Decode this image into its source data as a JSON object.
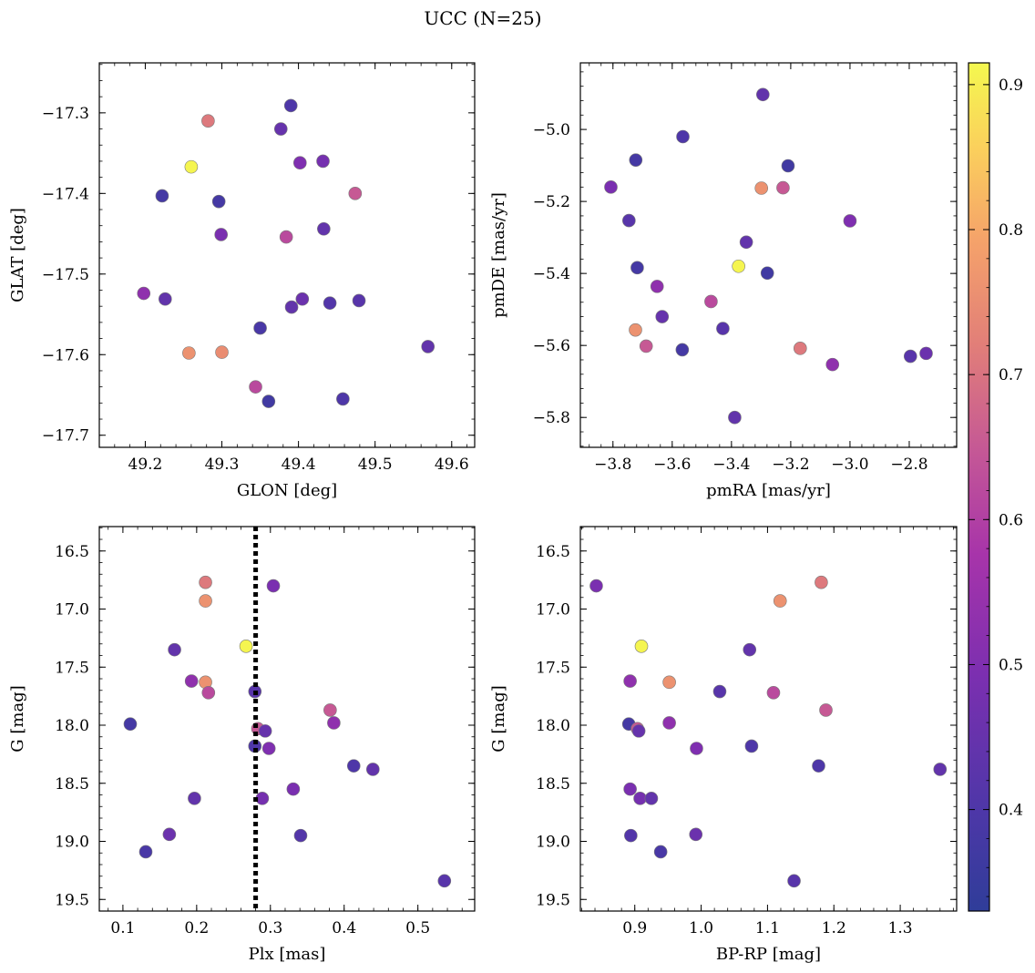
{
  "figure": {
    "title": "UCC (N=25)"
  },
  "colorbar": {
    "range": [
      0.33,
      0.915
    ],
    "ticks": [
      0.4,
      0.5,
      0.6,
      0.7,
      0.8,
      0.9
    ],
    "tick_labels": [
      "0.4",
      "0.5",
      "0.6",
      "0.7",
      "0.8",
      "0.9"
    ],
    "colormap": "plasma"
  },
  "chart_data": [
    {
      "id": "glon_glat",
      "type": "scatter",
      "xlabel": "GLON [deg]",
      "ylabel": "GLAT [deg]",
      "xlim": [
        49.14,
        49.63
      ],
      "ylim": [
        -17.715,
        -17.238
      ],
      "y_inverted": false,
      "xticks": [
        49.2,
        49.3,
        49.4,
        49.5,
        49.6
      ],
      "xtick_labels": [
        "49.2",
        "49.3",
        "49.4",
        "49.5",
        "49.6"
      ],
      "yticks": [
        -17.3,
        -17.4,
        -17.5,
        -17.6,
        -17.7
      ],
      "ytick_labels": [
        "−17.3",
        "−17.4",
        "−17.5",
        "−17.6",
        "−17.7"
      ],
      "points": [
        {
          "x": 49.39,
          "y": -17.291,
          "c": 0.4
        },
        {
          "x": 49.282,
          "y": -17.31,
          "c": 0.71
        },
        {
          "x": 49.377,
          "y": -17.32,
          "c": 0.45
        },
        {
          "x": 49.26,
          "y": -17.367,
          "c": 0.91
        },
        {
          "x": 49.402,
          "y": -17.362,
          "c": 0.5
        },
        {
          "x": 49.432,
          "y": -17.36,
          "c": 0.48
        },
        {
          "x": 49.222,
          "y": -17.403,
          "c": 0.38
        },
        {
          "x": 49.296,
          "y": -17.41,
          "c": 0.38
        },
        {
          "x": 49.474,
          "y": -17.4,
          "c": 0.65
        },
        {
          "x": 49.299,
          "y": -17.451,
          "c": 0.49
        },
        {
          "x": 49.384,
          "y": -17.454,
          "c": 0.62
        },
        {
          "x": 49.433,
          "y": -17.444,
          "c": 0.44
        },
        {
          "x": 49.198,
          "y": -17.524,
          "c": 0.53
        },
        {
          "x": 49.226,
          "y": -17.531,
          "c": 0.44
        },
        {
          "x": 49.405,
          "y": -17.531,
          "c": 0.46
        },
        {
          "x": 49.391,
          "y": -17.541,
          "c": 0.44
        },
        {
          "x": 49.441,
          "y": -17.536,
          "c": 0.41
        },
        {
          "x": 49.479,
          "y": -17.533,
          "c": 0.42
        },
        {
          "x": 49.35,
          "y": -17.567,
          "c": 0.39
        },
        {
          "x": 49.569,
          "y": -17.59,
          "c": 0.44
        },
        {
          "x": 49.257,
          "y": -17.598,
          "c": 0.76
        },
        {
          "x": 49.3,
          "y": -17.597,
          "c": 0.75
        },
        {
          "x": 49.344,
          "y": -17.64,
          "c": 0.62
        },
        {
          "x": 49.361,
          "y": -17.658,
          "c": 0.37
        },
        {
          "x": 49.458,
          "y": -17.655,
          "c": 0.4
        }
      ]
    },
    {
      "id": "pmra_pmde",
      "type": "scatter",
      "xlabel": "pmRA [mas/yr]",
      "ylabel": "pmDE [mas/yr]",
      "xlim": [
        -3.91,
        -2.64
      ],
      "ylim": [
        -5.883,
        -4.815
      ],
      "y_inverted": false,
      "xticks": [
        -3.8,
        -3.6,
        -3.4,
        -3.2,
        -3.0,
        -2.8
      ],
      "xtick_labels": [
        "−3.8",
        "−3.6",
        "−3.4",
        "−3.2",
        "−3.0",
        "−2.8"
      ],
      "yticks": [
        -5.0,
        -5.2,
        -5.4,
        -5.6,
        -5.8
      ],
      "ytick_labels": [
        "−5.0",
        "−5.2",
        "−5.4",
        "−5.6",
        "−5.8"
      ],
      "points": [
        {
          "x": -3.294,
          "y": -4.903,
          "c": 0.44
        },
        {
          "x": -3.564,
          "y": -5.02,
          "c": 0.4
        },
        {
          "x": -3.723,
          "y": -5.085,
          "c": 0.38
        },
        {
          "x": -3.209,
          "y": -5.101,
          "c": 0.37
        },
        {
          "x": -3.807,
          "y": -5.16,
          "c": 0.49
        },
        {
          "x": -3.299,
          "y": -5.163,
          "c": 0.76
        },
        {
          "x": -3.226,
          "y": -5.162,
          "c": 0.65
        },
        {
          "x": -3.746,
          "y": -5.253,
          "c": 0.42
        },
        {
          "x": -3.0,
          "y": -5.254,
          "c": 0.5
        },
        {
          "x": -3.35,
          "y": -5.313,
          "c": 0.44
        },
        {
          "x": -3.376,
          "y": -5.38,
          "c": 0.91
        },
        {
          "x": -3.718,
          "y": -5.384,
          "c": 0.38
        },
        {
          "x": -3.279,
          "y": -5.399,
          "c": 0.37
        },
        {
          "x": -3.651,
          "y": -5.436,
          "c": 0.53
        },
        {
          "x": -3.469,
          "y": -5.478,
          "c": 0.62
        },
        {
          "x": -3.634,
          "y": -5.52,
          "c": 0.45
        },
        {
          "x": -3.429,
          "y": -5.553,
          "c": 0.42
        },
        {
          "x": -3.724,
          "y": -5.557,
          "c": 0.76
        },
        {
          "x": -3.688,
          "y": -5.602,
          "c": 0.65
        },
        {
          "x": -3.566,
          "y": -5.612,
          "c": 0.38
        },
        {
          "x": -3.168,
          "y": -5.608,
          "c": 0.71
        },
        {
          "x": -2.796,
          "y": -5.63,
          "c": 0.42
        },
        {
          "x": -2.743,
          "y": -5.622,
          "c": 0.46
        },
        {
          "x": -3.059,
          "y": -5.653,
          "c": 0.53
        },
        {
          "x": -3.389,
          "y": -5.8,
          "c": 0.44
        }
      ]
    },
    {
      "id": "plx_g",
      "type": "scatter",
      "xlabel": "Plx [mas]",
      "ylabel": "G [mag]",
      "xlim": [
        0.068,
        0.577
      ],
      "ylim": [
        16.29,
        19.6
      ],
      "y_inverted": true,
      "xticks": [
        0.1,
        0.2,
        0.3,
        0.4,
        0.5
      ],
      "xtick_labels": [
        "0.1",
        "0.2",
        "0.3",
        "0.4",
        "0.5"
      ],
      "yticks": [
        16.5,
        17.0,
        17.5,
        18.0,
        18.5,
        19.0,
        19.5
      ],
      "ytick_labels": [
        "16.5",
        "17.0",
        "17.5",
        "18.0",
        "18.5",
        "19.0",
        "19.5"
      ],
      "vline": {
        "x": 0.28,
        "style": "dotted"
      },
      "points": [
        {
          "x": 0.212,
          "y": 16.77,
          "c": 0.71
        },
        {
          "x": 0.304,
          "y": 16.8,
          "c": 0.49
        },
        {
          "x": 0.212,
          "y": 16.93,
          "c": 0.76
        },
        {
          "x": 0.267,
          "y": 17.32,
          "c": 0.91
        },
        {
          "x": 0.17,
          "y": 17.35,
          "c": 0.44
        },
        {
          "x": 0.193,
          "y": 17.62,
          "c": 0.53
        },
        {
          "x": 0.212,
          "y": 17.63,
          "c": 0.76
        },
        {
          "x": 0.216,
          "y": 17.72,
          "c": 0.62
        },
        {
          "x": 0.279,
          "y": 17.71,
          "c": 0.42
        },
        {
          "x": 0.381,
          "y": 17.87,
          "c": 0.65
        },
        {
          "x": 0.11,
          "y": 17.99,
          "c": 0.38
        },
        {
          "x": 0.386,
          "y": 17.98,
          "c": 0.53
        },
        {
          "x": 0.283,
          "y": 18.03,
          "c": 0.65
        },
        {
          "x": 0.293,
          "y": 18.05,
          "c": 0.45
        },
        {
          "x": 0.279,
          "y": 18.18,
          "c": 0.4
        },
        {
          "x": 0.298,
          "y": 18.2,
          "c": 0.5
        },
        {
          "x": 0.413,
          "y": 18.35,
          "c": 0.4
        },
        {
          "x": 0.439,
          "y": 18.38,
          "c": 0.44
        },
        {
          "x": 0.331,
          "y": 18.55,
          "c": 0.49
        },
        {
          "x": 0.289,
          "y": 18.63,
          "c": 0.48
        },
        {
          "x": 0.197,
          "y": 18.63,
          "c": 0.44
        },
        {
          "x": 0.163,
          "y": 18.94,
          "c": 0.46
        },
        {
          "x": 0.341,
          "y": 18.95,
          "c": 0.41
        },
        {
          "x": 0.131,
          "y": 19.09,
          "c": 0.39
        },
        {
          "x": 0.536,
          "y": 19.34,
          "c": 0.42
        }
      ]
    },
    {
      "id": "bprp_g",
      "type": "scatter",
      "xlabel": "BP-RP [mag]",
      "ylabel": "G [mag]",
      "xlim": [
        0.818,
        1.385
      ],
      "ylim": [
        16.29,
        19.6
      ],
      "y_inverted": true,
      "xticks": [
        0.9,
        1.0,
        1.1,
        1.2,
        1.3
      ],
      "xtick_labels": [
        "0.9",
        "1.0",
        "1.1",
        "1.2",
        "1.3"
      ],
      "yticks": [
        16.5,
        17.0,
        17.5,
        18.0,
        18.5,
        19.0,
        19.5
      ],
      "ytick_labels": [
        "16.5",
        "17.0",
        "17.5",
        "18.0",
        "18.5",
        "19.0",
        "19.5"
      ],
      "points": [
        {
          "x": 0.842,
          "y": 16.8,
          "c": 0.49
        },
        {
          "x": 1.181,
          "y": 16.77,
          "c": 0.71
        },
        {
          "x": 1.119,
          "y": 16.93,
          "c": 0.76
        },
        {
          "x": 0.91,
          "y": 17.32,
          "c": 0.91
        },
        {
          "x": 1.073,
          "y": 17.35,
          "c": 0.44
        },
        {
          "x": 0.893,
          "y": 17.62,
          "c": 0.53
        },
        {
          "x": 0.952,
          "y": 17.63,
          "c": 0.76
        },
        {
          "x": 1.028,
          "y": 17.71,
          "c": 0.42
        },
        {
          "x": 1.109,
          "y": 17.72,
          "c": 0.62
        },
        {
          "x": 1.188,
          "y": 17.87,
          "c": 0.65
        },
        {
          "x": 0.891,
          "y": 17.99,
          "c": 0.38
        },
        {
          "x": 0.952,
          "y": 17.98,
          "c": 0.53
        },
        {
          "x": 0.904,
          "y": 18.03,
          "c": 0.65
        },
        {
          "x": 0.906,
          "y": 18.05,
          "c": 0.45
        },
        {
          "x": 0.993,
          "y": 18.2,
          "c": 0.5
        },
        {
          "x": 1.076,
          "y": 18.18,
          "c": 0.4
        },
        {
          "x": 1.177,
          "y": 18.35,
          "c": 0.4
        },
        {
          "x": 1.36,
          "y": 18.38,
          "c": 0.44
        },
        {
          "x": 0.893,
          "y": 18.55,
          "c": 0.49
        },
        {
          "x": 0.908,
          "y": 18.63,
          "c": 0.48
        },
        {
          "x": 0.925,
          "y": 18.63,
          "c": 0.44
        },
        {
          "x": 0.992,
          "y": 18.94,
          "c": 0.46
        },
        {
          "x": 0.894,
          "y": 18.95,
          "c": 0.41
        },
        {
          "x": 0.939,
          "y": 19.09,
          "c": 0.39
        },
        {
          "x": 1.14,
          "y": 19.34,
          "c": 0.42
        }
      ]
    }
  ]
}
